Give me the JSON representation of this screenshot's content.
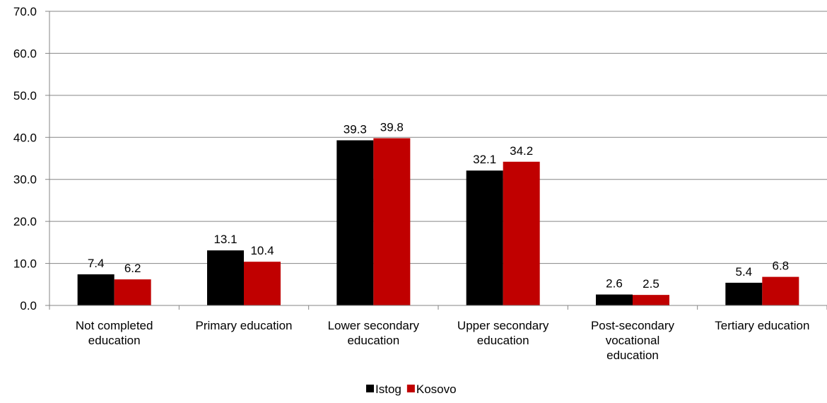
{
  "chart_data": {
    "type": "bar",
    "title": "",
    "xlabel": "",
    "ylabel": "",
    "ylim": [
      0,
      70
    ],
    "yticks": [
      "0.0",
      "10.0",
      "20.0",
      "30.0",
      "40.0",
      "50.0",
      "60.0",
      "70.0"
    ],
    "grid": true,
    "legend_position": "bottom",
    "categories": [
      [
        "Not completed",
        "education"
      ],
      [
        "Primary education"
      ],
      [
        "Lower secondary",
        "education"
      ],
      [
        "Upper secondary",
        "education"
      ],
      [
        "Post-secondary",
        "vocational",
        "education"
      ],
      [
        "Tertiary education"
      ]
    ],
    "series": [
      {
        "name": "Istog",
        "color": "#000000",
        "values": [
          7.4,
          13.1,
          39.3,
          32.1,
          2.6,
          5.4
        ],
        "labels": [
          "7.4",
          "13.1",
          "39.3",
          "32.1",
          "2.6",
          "5.4"
        ]
      },
      {
        "name": "Kosovo",
        "color": "#c00000",
        "values": [
          6.2,
          10.4,
          39.8,
          34.2,
          2.5,
          6.8
        ],
        "labels": [
          "6.2",
          "10.4",
          "39.8",
          "34.2",
          "2.5",
          "6.8"
        ]
      }
    ]
  }
}
